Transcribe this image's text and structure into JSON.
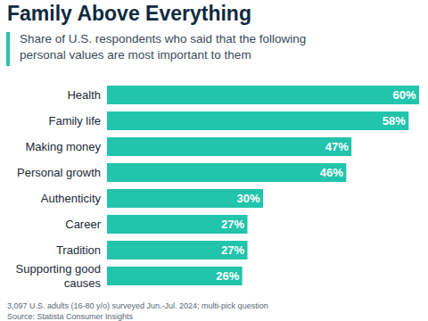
{
  "chart_data": {
    "type": "bar",
    "orientation": "horizontal",
    "title": "Family Above Everything",
    "subtitle": "Share of U.S. respondents who said that the following personal values are most important to them",
    "categories": [
      "Health",
      "Family life",
      "Making money",
      "Personal growth",
      "Authenticity",
      "Career",
      "Tradition",
      "Supporting good causes"
    ],
    "values": [
      60,
      58,
      47,
      46,
      30,
      27,
      27,
      26
    ],
    "value_labels": [
      "60%",
      "58%",
      "47%",
      "46%",
      "30%",
      "27%",
      "27%",
      "26%"
    ],
    "data_labels": true,
    "color": "#22c4ac",
    "xlim": [
      0,
      60
    ],
    "tick_labels": "y",
    "grid": false,
    "annotations": [
      "3,097 U.S. adults (16-80 y/o) surveyed Jun.-Jul. 2024; multi-pick question",
      "Source: Statista Consumer Insights"
    ]
  }
}
